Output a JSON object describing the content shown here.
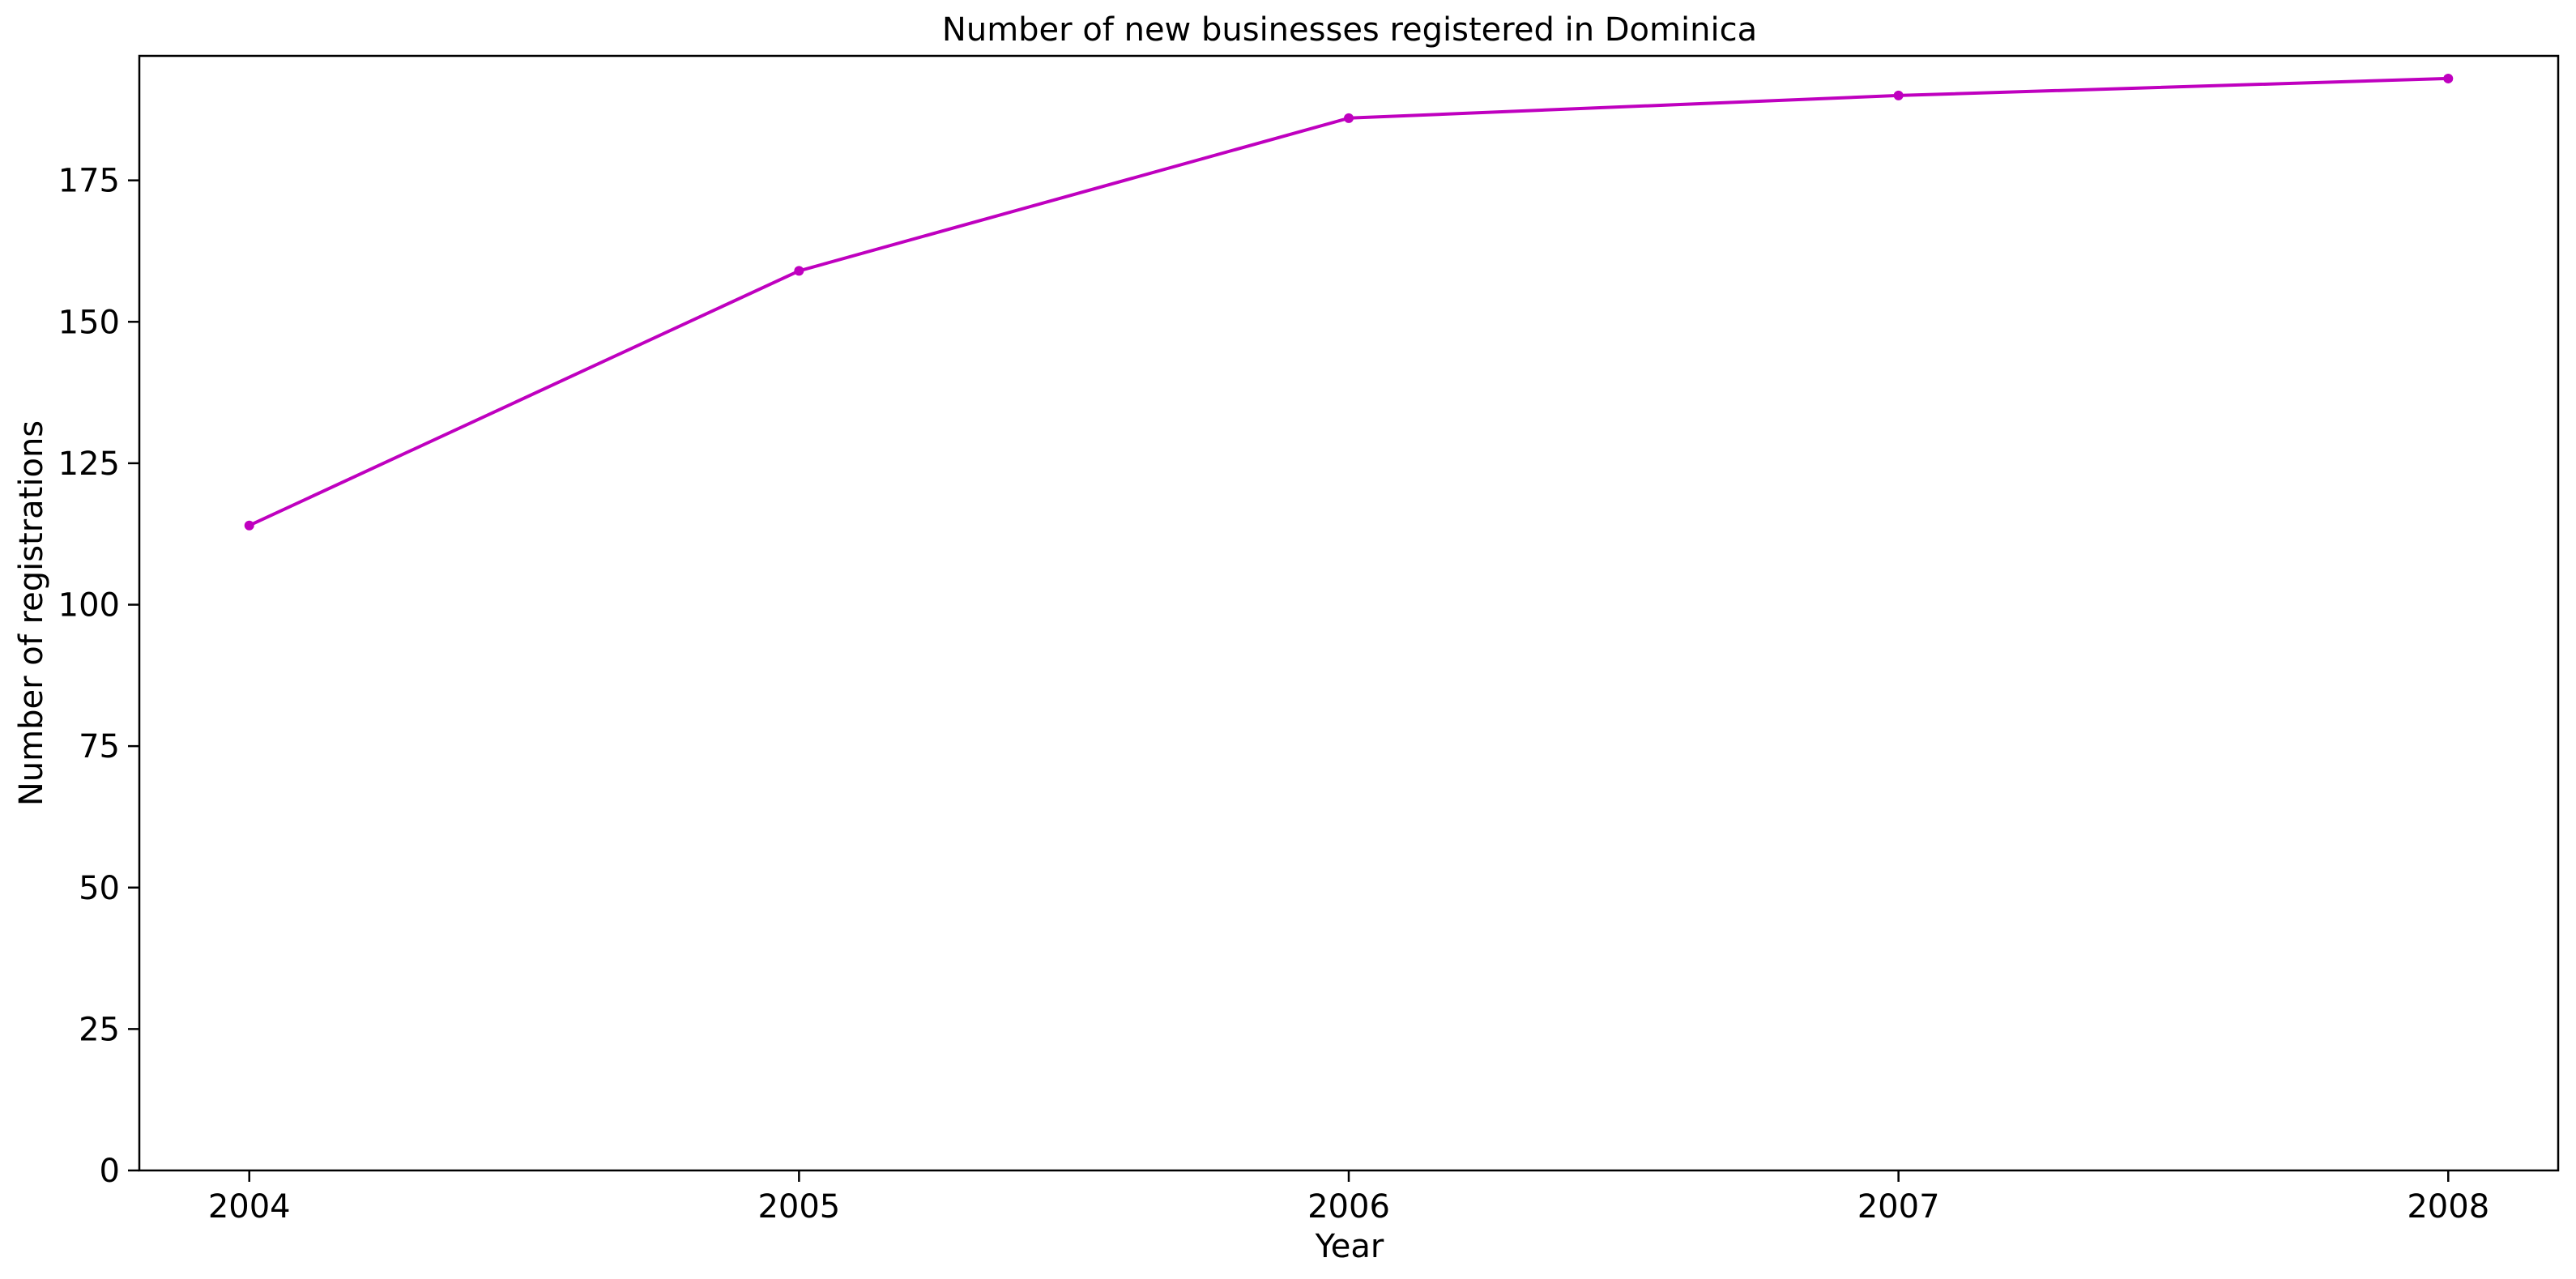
{
  "chart_data": {
    "type": "line",
    "title": "Number of new businesses registered in Dominica",
    "xlabel": "Year",
    "ylabel": "Number of registrations",
    "x": [
      2004,
      2005,
      2006,
      2007,
      2008
    ],
    "series": [
      {
        "values": [
          114,
          159,
          186,
          190,
          193
        ],
        "color": "#bf00bf",
        "marker": "circle"
      }
    ],
    "xlim": [
      2003.8,
      2008.2
    ],
    "ylim": [
      0,
      197
    ],
    "yticks": [
      0,
      25,
      50,
      75,
      100,
      125,
      150,
      175
    ],
    "xticks": [
      2004,
      2005,
      2006,
      2007,
      2008
    ],
    "grid": false,
    "legend": "none"
  }
}
